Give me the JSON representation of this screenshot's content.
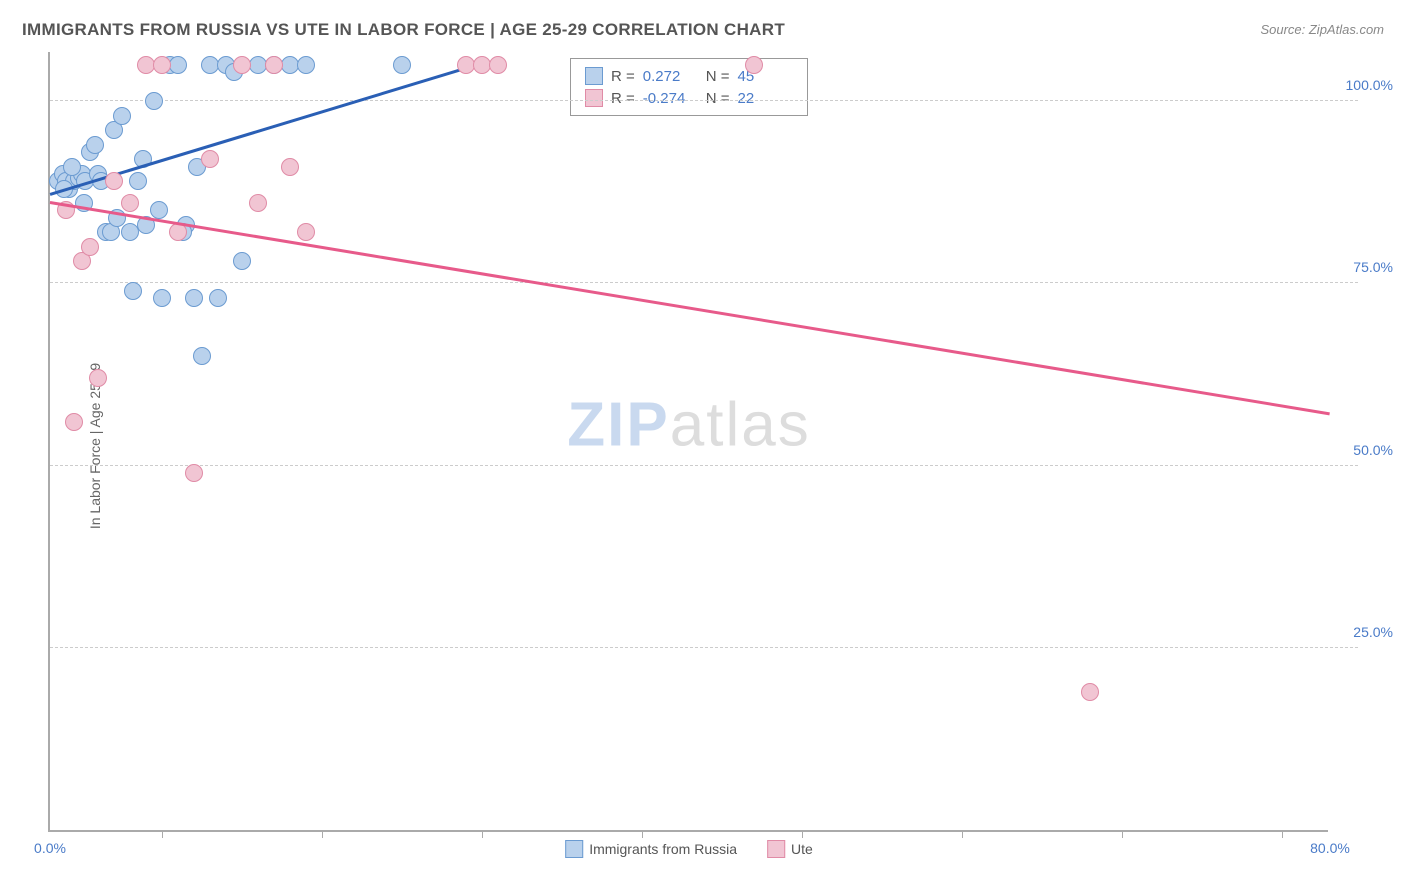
{
  "title": "IMMIGRANTS FROM RUSSIA VS UTE IN LABOR FORCE | AGE 25-29 CORRELATION CHART",
  "source": "Source: ZipAtlas.com",
  "y_label": "In Labor Force | Age 25-29",
  "watermark_a": "ZIP",
  "watermark_b": "atlas",
  "chart": {
    "type": "scatter",
    "xlim": [
      0,
      80
    ],
    "ylim": [
      0,
      107
    ],
    "x_ticks": [
      0,
      80
    ],
    "x_tick_labels": [
      "0.0%",
      "80.0%"
    ],
    "x_minor_ticks": [
      7,
      17,
      27,
      37,
      47,
      57,
      67,
      77
    ],
    "y_gridlines": [
      25,
      50,
      75,
      100
    ],
    "y_tick_labels": [
      "25.0%",
      "50.0%",
      "75.0%",
      "100.0%"
    ],
    "background": "#ffffff",
    "grid_color": "#cccccc",
    "axis_color": "#aaaaaa",
    "tick_label_color": "#4a7bc8",
    "point_radius": 9
  },
  "series": [
    {
      "name": "Immigrants from Russia",
      "fill": "#b9d1ec",
      "stroke": "#6b9bd1",
      "line_color": "#2a5fb5",
      "R": "0.272",
      "N": "45",
      "trend": {
        "x1": 0,
        "y1": 87,
        "x2": 27,
        "y2": 105
      },
      "points": [
        [
          0.5,
          89
        ],
        [
          0.8,
          90
        ],
        [
          1,
          89
        ],
        [
          1.2,
          88
        ],
        [
          1.5,
          89
        ],
        [
          1.8,
          89.5
        ],
        [
          2,
          90
        ],
        [
          2.2,
          89
        ],
        [
          2.5,
          93
        ],
        [
          2.8,
          94
        ],
        [
          3,
          90
        ],
        [
          3.2,
          89
        ],
        [
          3.5,
          82
        ],
        [
          4,
          96
        ],
        [
          4.5,
          98
        ],
        [
          5,
          82
        ],
        [
          5.2,
          74
        ],
        [
          5.5,
          89
        ],
        [
          6,
          83
        ],
        [
          6.5,
          100
        ],
        [
          7,
          73
        ],
        [
          7.5,
          105
        ],
        [
          8,
          105
        ],
        [
          8.5,
          83
        ],
        [
          9,
          73
        ],
        [
          9.5,
          65
        ],
        [
          10,
          105
        ],
        [
          10.5,
          73
        ],
        [
          11,
          105
        ],
        [
          12,
          78
        ],
        [
          13,
          105
        ],
        [
          14,
          105
        ],
        [
          15,
          105
        ],
        [
          16,
          105
        ],
        [
          22,
          105
        ],
        [
          8.3,
          82
        ],
        [
          5.8,
          92
        ],
        [
          3.8,
          82
        ],
        [
          2.1,
          86
        ],
        [
          1.4,
          91
        ],
        [
          0.9,
          88
        ],
        [
          4.2,
          84
        ],
        [
          6.8,
          85
        ],
        [
          9.2,
          91
        ],
        [
          11.5,
          104
        ]
      ]
    },
    {
      "name": "Ute",
      "fill": "#f1c5d3",
      "stroke": "#e08ba6",
      "line_color": "#e75a8a",
      "R": "-0.274",
      "N": "22",
      "trend": {
        "x1": 0,
        "y1": 86,
        "x2": 80,
        "y2": 57
      },
      "points": [
        [
          1,
          85
        ],
        [
          1.5,
          56
        ],
        [
          2,
          78
        ],
        [
          2.5,
          80
        ],
        [
          3,
          62
        ],
        [
          4,
          89
        ],
        [
          5,
          86
        ],
        [
          6,
          105
        ],
        [
          7,
          105
        ],
        [
          8,
          82
        ],
        [
          9,
          49
        ],
        [
          10,
          92
        ],
        [
          12,
          105
        ],
        [
          13,
          86
        ],
        [
          14,
          105
        ],
        [
          15,
          91
        ],
        [
          16,
          82
        ],
        [
          26,
          105
        ],
        [
          27,
          105
        ],
        [
          28,
          105
        ],
        [
          44,
          105
        ],
        [
          65,
          19
        ]
      ]
    }
  ],
  "legend": {
    "a": "Immigrants from Russia",
    "b": "Ute"
  }
}
